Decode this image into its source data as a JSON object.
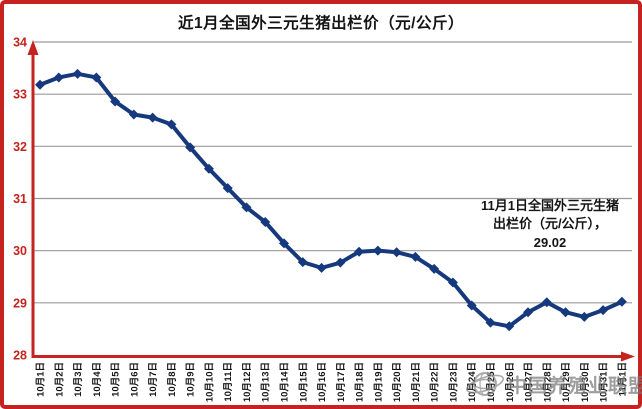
{
  "chart_data": {
    "type": "line",
    "title": "近1月全国外三元生猪出栏价（元/公斤）",
    "categories": [
      "10月1日",
      "10月2日",
      "10月3日",
      "10月4日",
      "10月5日",
      "10月6日",
      "10月7日",
      "10月8日",
      "10月9日",
      "10月10日",
      "10月11日",
      "10月12日",
      "10月13日",
      "10月14日",
      "10月15日",
      "10月16日",
      "10月17日",
      "10月18日",
      "10月19日",
      "10月20日",
      "10月21日",
      "10月22日",
      "10月23日",
      "10月24日",
      "10月25日",
      "10月26日",
      "10月27日",
      "10月28日",
      "10月29日",
      "10月30日",
      "10月31日",
      "11月1日"
    ],
    "values": [
      33.18,
      33.32,
      33.39,
      33.32,
      32.86,
      32.61,
      32.55,
      32.42,
      31.98,
      31.57,
      31.2,
      30.83,
      30.55,
      30.14,
      29.78,
      29.67,
      29.77,
      29.98,
      30.0,
      29.97,
      29.88,
      29.65,
      29.39,
      28.95,
      28.62,
      28.55,
      28.82,
      29.01,
      28.82,
      28.73,
      28.86,
      29.02
    ],
    "ylim": [
      28,
      34
    ],
    "yticks": [
      34,
      33,
      32,
      31,
      30,
      29,
      28
    ],
    "grid": true,
    "legend": "none",
    "xlabel": "",
    "ylabel": "",
    "line_color": "#16397d",
    "marker_shape": "diamond",
    "grid_color": "#9a9a9a",
    "axis_color": "#c5231f",
    "frame_color": "#c5231f",
    "y_tick_color": "#c5231f",
    "x_tick_color": "#141414",
    "annotation": {
      "line1": "11月1日全国外三元生猪",
      "line2": "出栏价（元/公斤），",
      "line3": "29.02"
    },
    "watermark": "中国养殖业联盟"
  }
}
